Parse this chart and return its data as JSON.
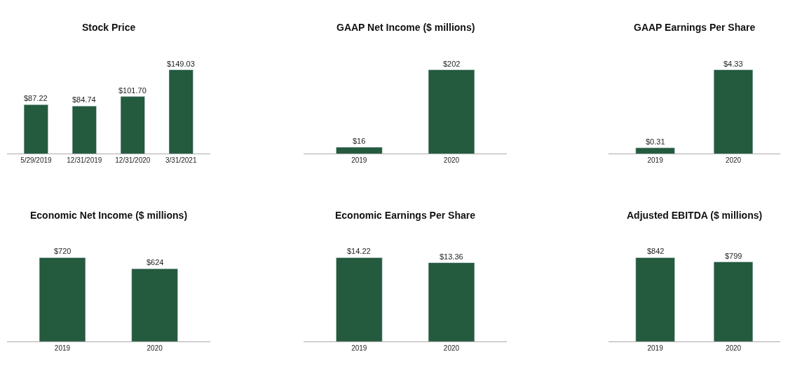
{
  "chart_data": [
    {
      "type": "bar",
      "title": "Stock Price",
      "categories": [
        "5/29/2019",
        "12/31/2019",
        "12/31/2020",
        "3/31/2021"
      ],
      "values": [
        87.22,
        84.74,
        101.7,
        149.03
      ],
      "value_labels": [
        "$87.22",
        "$84.74",
        "$101.70",
        "$149.03"
      ],
      "color": "#245a3e"
    },
    {
      "type": "bar",
      "title": "GAAP Net Income ($ millions)",
      "categories": [
        "2019",
        "2020"
      ],
      "values": [
        16,
        202
      ],
      "value_labels": [
        "$16",
        "$202"
      ],
      "color": "#245a3e"
    },
    {
      "type": "bar",
      "title": "GAAP Earnings Per Share",
      "categories": [
        "2019",
        "2020"
      ],
      "values": [
        0.31,
        4.33
      ],
      "value_labels": [
        "$0.31",
        "$4.33"
      ],
      "color": "#245a3e"
    },
    {
      "type": "bar",
      "title": "Economic Net Income ($ millions)",
      "categories": [
        "2019",
        "2020"
      ],
      "values": [
        720,
        624
      ],
      "value_labels": [
        "$720",
        "$624"
      ],
      "color": "#245a3e"
    },
    {
      "type": "bar",
      "title": "Economic Earnings Per Share",
      "categories": [
        "2019",
        "2020"
      ],
      "values": [
        14.22,
        13.36
      ],
      "value_labels": [
        "$14.22",
        "$13.36"
      ],
      "color": "#245a3e"
    },
    {
      "type": "bar",
      "title": "Adjusted EBITDA ($ millions)",
      "categories": [
        "2019",
        "2020"
      ],
      "values": [
        842,
        799
      ],
      "value_labels": [
        "$842",
        "$799"
      ],
      "color": "#245a3e"
    }
  ]
}
